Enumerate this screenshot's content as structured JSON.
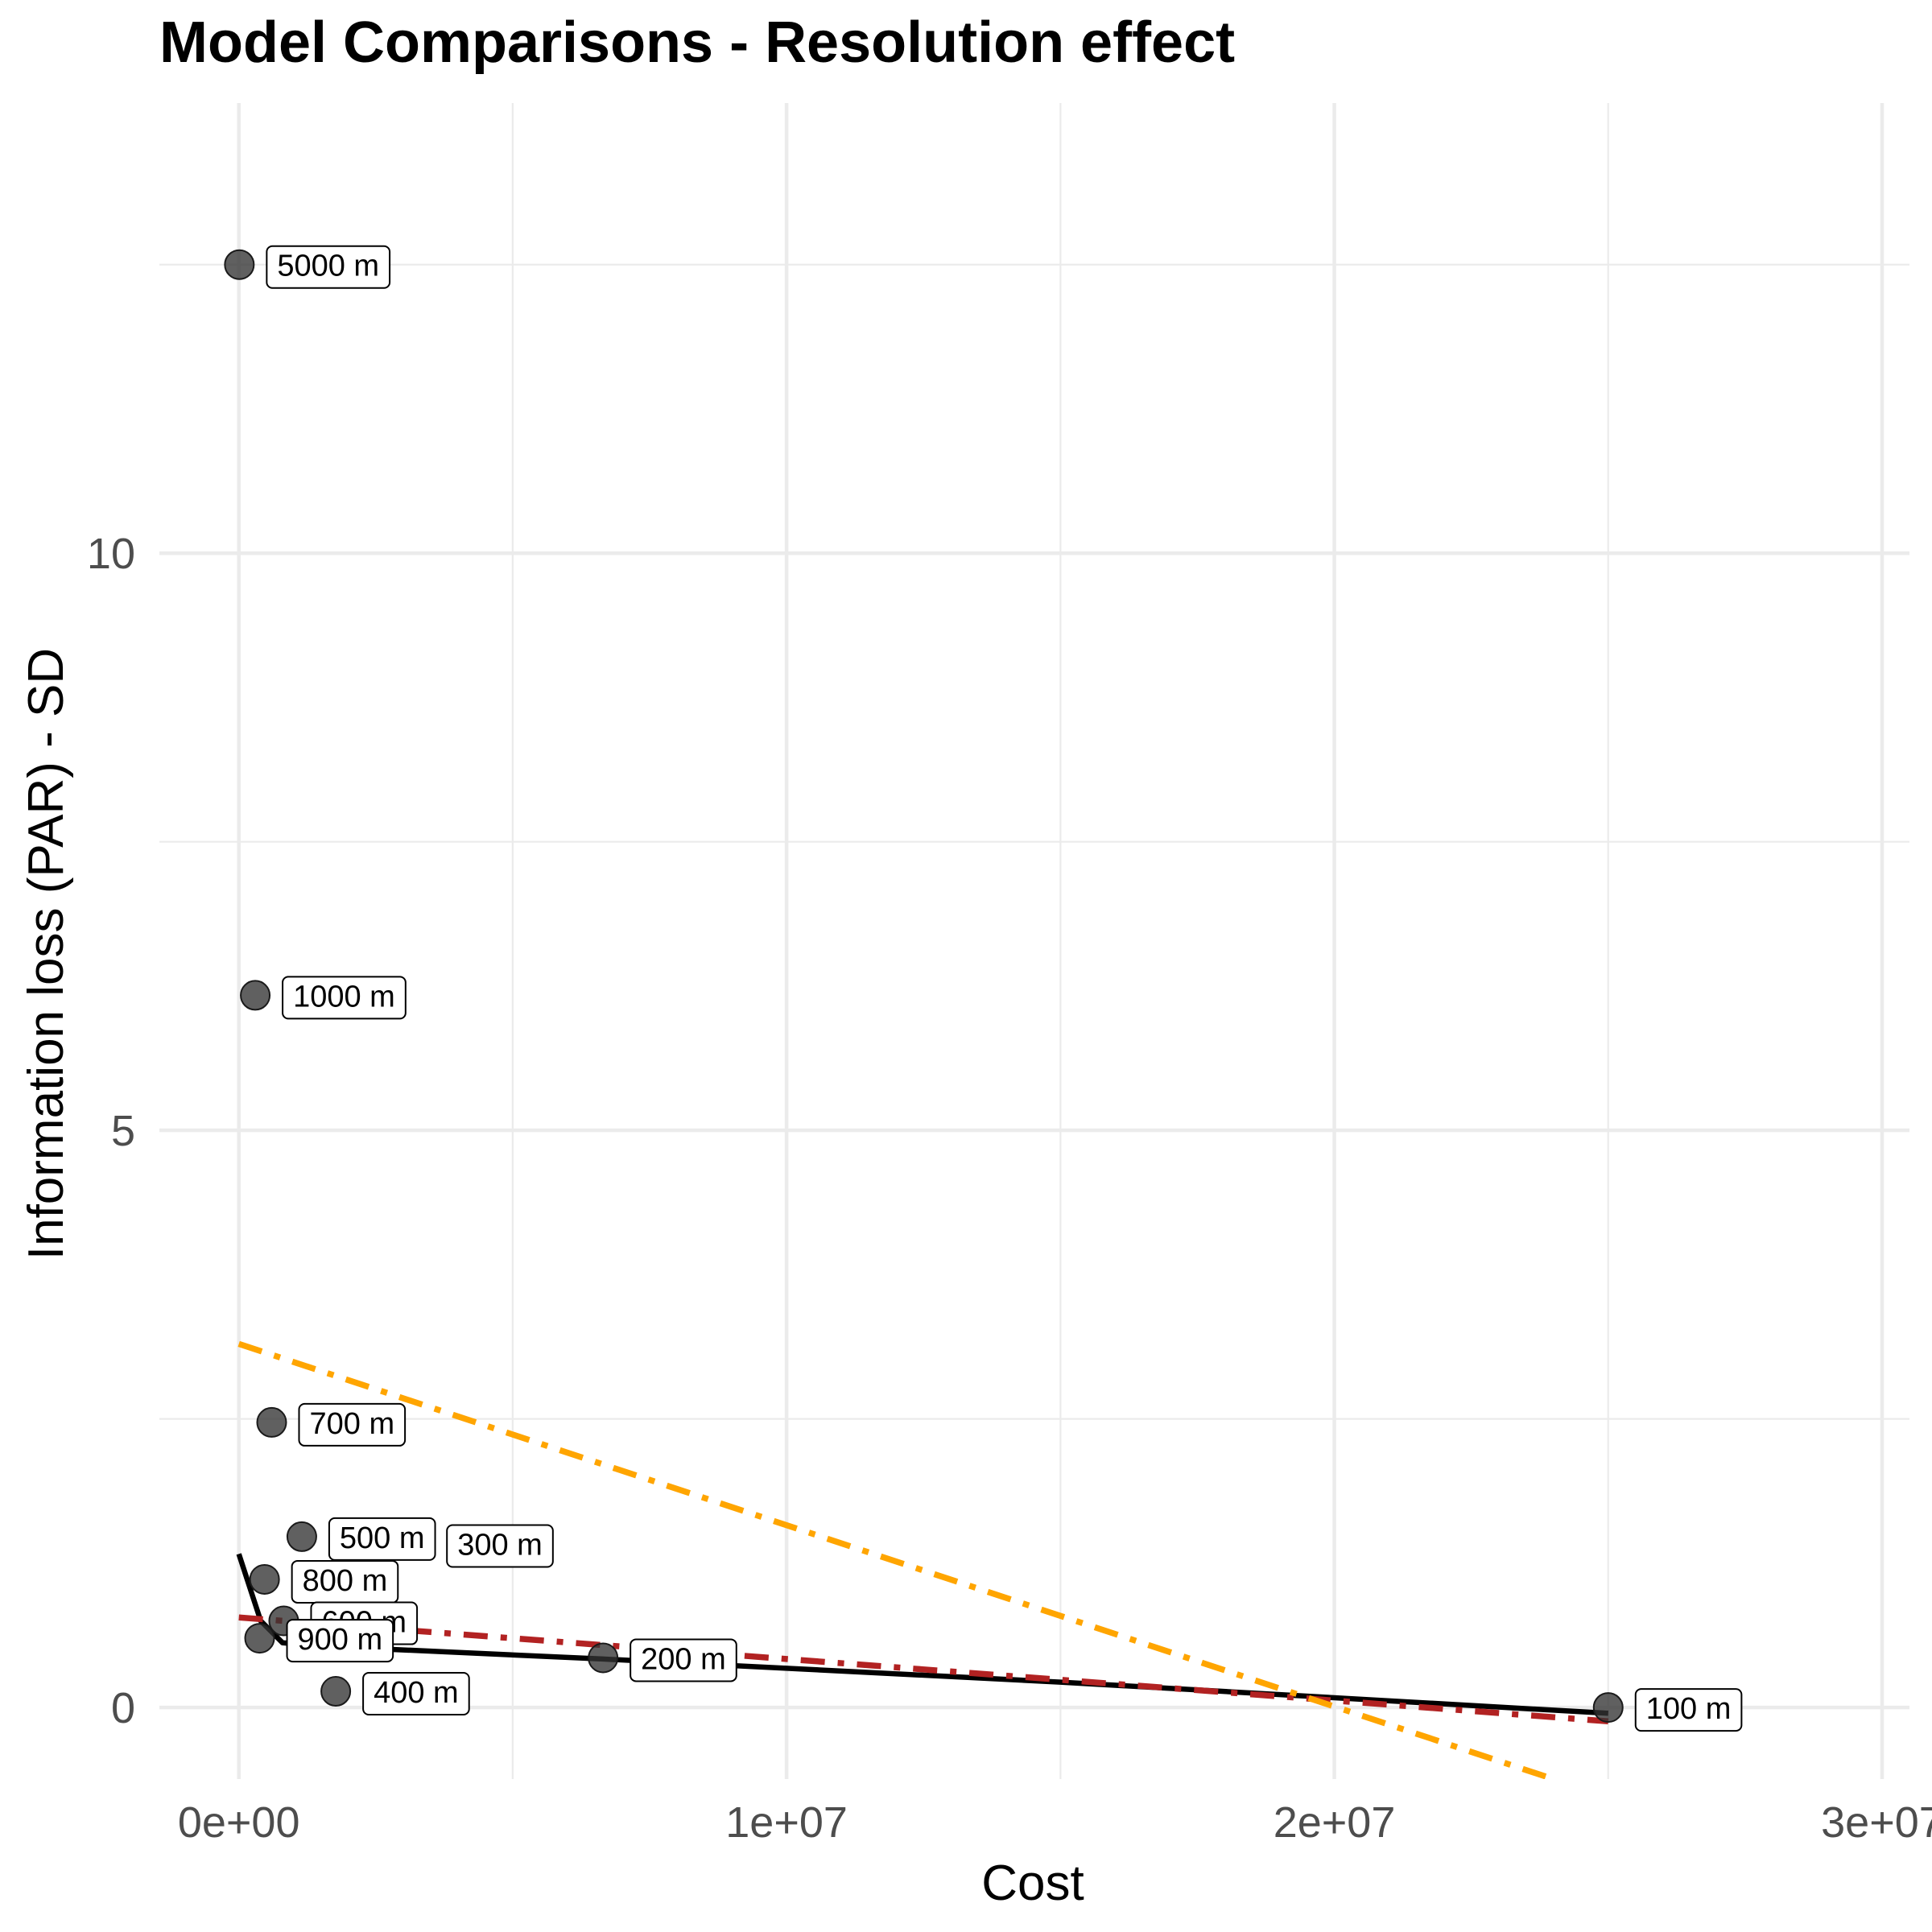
{
  "chart_data": {
    "type": "scatter",
    "title": "Model Comparisons - Resolution effect",
    "xlabel": "Cost",
    "ylabel": "Information loss (PAR) - SD",
    "xlim": [
      -1450000,
      30500000
    ],
    "ylim": [
      -0.62,
      13.9
    ],
    "x_ticks": [
      0,
      10000000,
      20000000,
      30000000
    ],
    "x_tick_labels": [
      "0e+00",
      "1e+07",
      "2e+07",
      "3e+07"
    ],
    "y_ticks": [
      0,
      5,
      10
    ],
    "y_tick_labels": [
      "0",
      "5",
      "10"
    ],
    "grid": true,
    "legend": "none",
    "points": [
      {
        "label": "5000 m",
        "x": 10000,
        "y": 12.5
      },
      {
        "label": "1000 m",
        "x": 300000,
        "y": 6.17
      },
      {
        "label": "700 m",
        "x": 600000,
        "y": 2.47
      },
      {
        "label": "500 m",
        "x": 1150000,
        "y": 1.48
      },
      {
        "label": "300 m",
        "x": 3300000,
        "y": 1.42
      },
      {
        "label": "800 m",
        "x": 470000,
        "y": 1.11
      },
      {
        "label": "600 m",
        "x": 820000,
        "y": 0.75
      },
      {
        "label": "900 m",
        "x": 380000,
        "y": 0.6
      },
      {
        "label": "200 m",
        "x": 6650000,
        "y": 0.43
      },
      {
        "label": "400 m",
        "x": 1770000,
        "y": 0.14
      },
      {
        "label": "100 m",
        "x": 25000000,
        "y": 0.0
      }
    ],
    "series": [
      {
        "style": "solid",
        "color": "#000000",
        "x": [
          0,
          400000,
          800000,
          2000000,
          6650000,
          15000000,
          25000000
        ],
        "y": [
          1.33,
          0.75,
          0.56,
          0.52,
          0.42,
          0.22,
          -0.05
        ]
      },
      {
        "style": "dashdot",
        "color": "#b22222",
        "x": [
          0,
          25000000
        ],
        "y": [
          0.78,
          -0.12
        ]
      },
      {
        "style": "dashdot",
        "color": "#ffa500",
        "x": [
          0,
          24000000
        ],
        "y": [
          3.15,
          -0.62
        ]
      }
    ]
  }
}
